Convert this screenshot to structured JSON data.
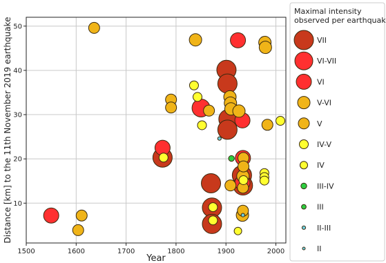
{
  "chart_data": {
    "type": "scatter",
    "xlabel": "Year",
    "ylabel": "Distance [km] to the 11th November 2019 earthquake",
    "xlim": [
      1500,
      2020
    ],
    "ylim": [
      1,
      52
    ],
    "xticks": [
      1500,
      1600,
      1700,
      1800,
      1900,
      2000
    ],
    "yticks": [
      10,
      20,
      30,
      40,
      50
    ],
    "grid": true,
    "legend": {
      "placement": "right",
      "title_lines": [
        "Maximal intensity",
        "observed per earthquake"
      ]
    },
    "categories": [
      {
        "label": "VII",
        "color": "#c8391c",
        "size": "largest"
      },
      {
        "label": "VI-VII",
        "color": "#ff3030",
        "size": "very large"
      },
      {
        "label": "VI",
        "color": "#ff3030",
        "size": "large"
      },
      {
        "label": "V-VI",
        "color": "#f0b418",
        "size": "medium-large"
      },
      {
        "label": "V",
        "color": "#f0b418",
        "size": "medium"
      },
      {
        "label": "IV-V",
        "color": "#ffff30",
        "size": "medium-small"
      },
      {
        "label": "IV",
        "color": "#ffff30",
        "size": "small"
      },
      {
        "label": "III-IV",
        "color": "#2ecc40",
        "size": "smaller"
      },
      {
        "label": "III",
        "color": "#2ecc40",
        "size": "very small"
      },
      {
        "label": "II-III",
        "color": "#6fd0e0",
        "size": "tiny"
      },
      {
        "label": "II",
        "color": "#6fd0e0",
        "size": "smallest"
      }
    ],
    "points": [
      {
        "x": 1550,
        "y": 7.2,
        "intensity": "VI"
      },
      {
        "x": 1604,
        "y": 3.9,
        "intensity": "V"
      },
      {
        "x": 1611,
        "y": 7.2,
        "intensity": "V"
      },
      {
        "x": 1636,
        "y": 49.6,
        "intensity": "V"
      },
      {
        "x": 1773,
        "y": 22.5,
        "intensity": "VI"
      },
      {
        "x": 1773,
        "y": 20.3,
        "intensity": "VII"
      },
      {
        "x": 1775,
        "y": 20.3,
        "intensity": "IV-V"
      },
      {
        "x": 1790,
        "y": 33.4,
        "intensity": "V"
      },
      {
        "x": 1790,
        "y": 31.6,
        "intensity": "V"
      },
      {
        "x": 1836,
        "y": 36.6,
        "intensity": "IV-V"
      },
      {
        "x": 1839,
        "y": 46.9,
        "intensity": "V-VI"
      },
      {
        "x": 1843,
        "y": 34.0,
        "intensity": "IV-V"
      },
      {
        "x": 1850,
        "y": 31.5,
        "intensity": "VI-VII"
      },
      {
        "x": 1852,
        "y": 27.6,
        "intensity": "IV-V"
      },
      {
        "x": 1866,
        "y": 30.9,
        "intensity": "V"
      },
      {
        "x": 1870,
        "y": 14.5,
        "intensity": "VII"
      },
      {
        "x": 1872,
        "y": 9.0,
        "intensity": "VII"
      },
      {
        "x": 1872,
        "y": 5.3,
        "intensity": "VII"
      },
      {
        "x": 1874,
        "y": 9.1,
        "intensity": "IV-V"
      },
      {
        "x": 1874,
        "y": 6.1,
        "intensity": "IV-V"
      },
      {
        "x": 1887,
        "y": 24.6,
        "intensity": "II-III"
      },
      {
        "x": 1901,
        "y": 40.1,
        "intensity": "VII"
      },
      {
        "x": 1903,
        "y": 37.0,
        "intensity": "VII"
      },
      {
        "x": 1905,
        "y": 29.0,
        "intensity": "VII"
      },
      {
        "x": 1903,
        "y": 26.6,
        "intensity": "VII"
      },
      {
        "x": 1908,
        "y": 34.0,
        "intensity": "V-VI"
      },
      {
        "x": 1909,
        "y": 32.6,
        "intensity": "V-VI"
      },
      {
        "x": 1910,
        "y": 31.3,
        "intensity": "V-VI"
      },
      {
        "x": 1911,
        "y": 20.1,
        "intensity": "III-IV"
      },
      {
        "x": 1909,
        "y": 14.0,
        "intensity": "V"
      },
      {
        "x": 1924,
        "y": 46.8,
        "intensity": "VI"
      },
      {
        "x": 1926,
        "y": 30.8,
        "intensity": "V-VI"
      },
      {
        "x": 1924,
        "y": 3.7,
        "intensity": "IV"
      },
      {
        "x": 1933,
        "y": 28.7,
        "intensity": "VI"
      },
      {
        "x": 1934,
        "y": 20.2,
        "intensity": "VI"
      },
      {
        "x": 1935,
        "y": 20.2,
        "intensity": "V"
      },
      {
        "x": 1935,
        "y": 18.3,
        "intensity": "V"
      },
      {
        "x": 1932,
        "y": 16.3,
        "intensity": "VII"
      },
      {
        "x": 1934,
        "y": 16.1,
        "intensity": "V-VI"
      },
      {
        "x": 1933,
        "y": 14.6,
        "intensity": "VI"
      },
      {
        "x": 1934,
        "y": 14.0,
        "intensity": "VII"
      },
      {
        "x": 1934,
        "y": 13.5,
        "intensity": "V"
      },
      {
        "x": 1935,
        "y": 15.2,
        "intensity": "IV-V"
      },
      {
        "x": 1934,
        "y": 8.3,
        "intensity": "V"
      },
      {
        "x": 1933,
        "y": 7.3,
        "intensity": "V-VI"
      },
      {
        "x": 1934,
        "y": 7.3,
        "intensity": "II-III"
      },
      {
        "x": 1978,
        "y": 46.3,
        "intensity": "V-VI"
      },
      {
        "x": 1979,
        "y": 45.2,
        "intensity": "V-VI"
      },
      {
        "x": 1977,
        "y": 16.8,
        "intensity": "IV-V"
      },
      {
        "x": 1977,
        "y": 15.9,
        "intensity": "IV-V"
      },
      {
        "x": 1977,
        "y": 15.1,
        "intensity": "IV-V"
      },
      {
        "x": 1983,
        "y": 27.7,
        "intensity": "V"
      },
      {
        "x": 2009,
        "y": 28.6,
        "intensity": "IV-V"
      }
    ]
  }
}
